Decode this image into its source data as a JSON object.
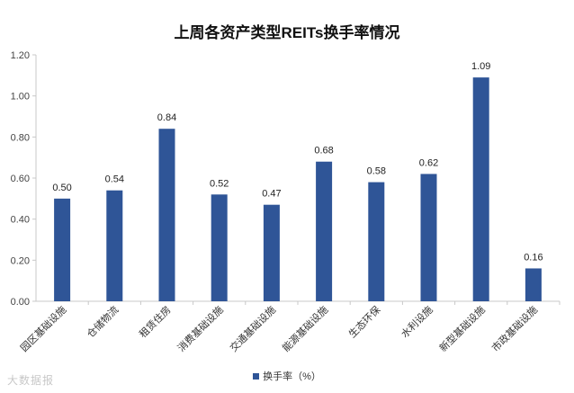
{
  "colors": {
    "bar": "#2f5597",
    "axis": "#c8c8c8"
  },
  "watermark": "大数据报",
  "chart_data": {
    "type": "bar",
    "title": "上周各资产类型REITs换手率情况",
    "xlabel": "",
    "ylabel": "",
    "ylim": [
      0,
      1.2
    ],
    "yticks": [
      "0.00",
      "0.20",
      "0.40",
      "0.60",
      "0.80",
      "1.00",
      "1.20"
    ],
    "grid": false,
    "legend": "bottom",
    "categories": [
      "园区基础设施",
      "仓储物流",
      "租赁住房",
      "消费基础设施",
      "交通基础设施",
      "能源基础设施",
      "生态环保",
      "水利设施",
      "新型基础设施",
      "市政基础设施"
    ],
    "series": [
      {
        "name": "换手率（%）",
        "values": [
          0.5,
          0.54,
          0.84,
          0.52,
          0.47,
          0.68,
          0.58,
          0.62,
          1.09,
          0.16
        ],
        "labels": [
          "0.50",
          "0.54",
          "0.84",
          "0.52",
          "0.47",
          "0.68",
          "0.58",
          "0.62",
          "1.09",
          "0.16"
        ]
      }
    ]
  }
}
